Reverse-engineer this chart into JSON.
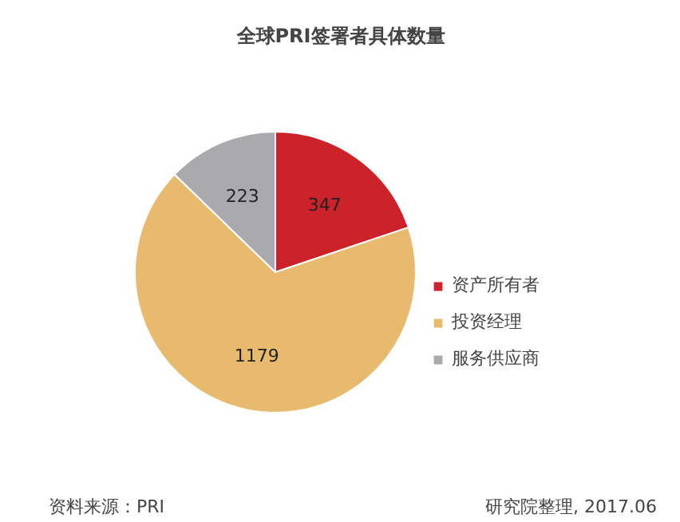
{
  "chart_data": {
    "type": "pie",
    "title": "全球PRI签署者具体数量",
    "categories": [
      "资产所有者",
      "投资经理",
      "服务供应商"
    ],
    "values": [
      347,
      1179,
      223
    ],
    "colors": [
      "#cc2229",
      "#e8ba6e",
      "#a9a9ae"
    ],
    "data_labels": true,
    "legend": "right",
    "annotations": [
      "资料来源：PRI",
      "研究院整理, 2017.06"
    ]
  }
}
